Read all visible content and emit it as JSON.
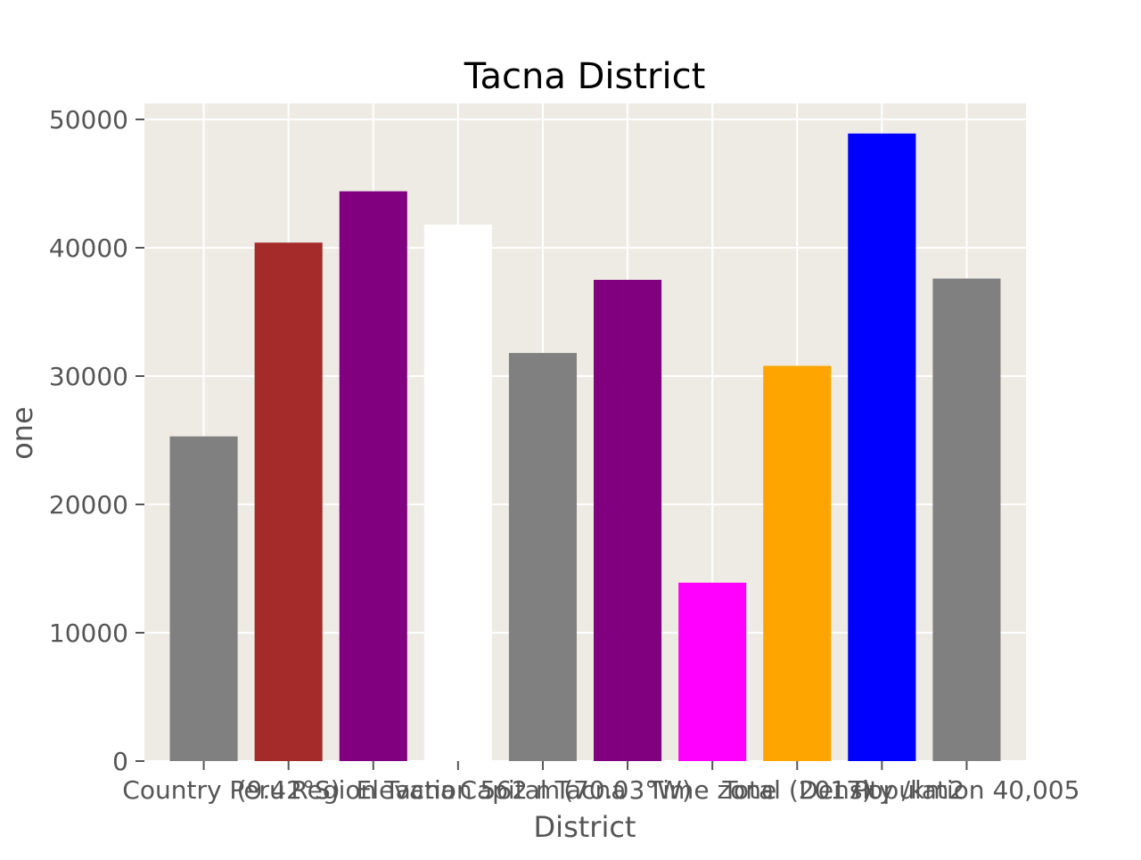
{
  "chart_data": {
    "type": "bar",
    "title": "Tacna District",
    "xlabel": "District",
    "ylabel": "one",
    "ylim": [
      0,
      50000
    ],
    "grid": true,
    "y_ticks": [
      0,
      10000,
      20000,
      30000,
      40000,
      50000
    ],
    "categories": [
      "Country Peru",
      "(9.42°S)",
      "Region Tacna",
      "Elevation 562 m",
      "Capital Tacna",
      "(70.03°W)",
      "Time zone",
      "Total (2017)",
      "Density /km2",
      "Population 40,005"
    ],
    "values": [
      25300,
      40400,
      44400,
      41800,
      31800,
      37500,
      13900,
      30800,
      48900,
      37600
    ],
    "colors": [
      "#808080",
      "#a52a2a",
      "#800080",
      "#ffffff",
      "#808080",
      "#800080",
      "#ff00ff",
      "#ffa500",
      "#0000ff",
      "#808080"
    ],
    "plot_background": "#eeebe4"
  }
}
